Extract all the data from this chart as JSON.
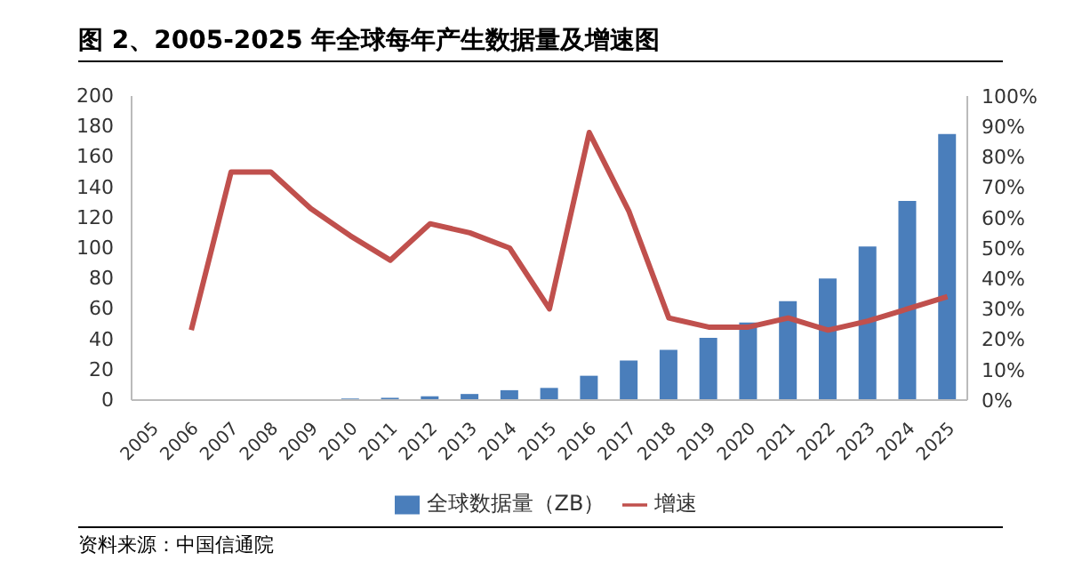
{
  "chart_data": {
    "type": "bar",
    "title": "图 2、2005-2025 年全球每年产生数据量及增速图",
    "categories": [
      "2005",
      "2006",
      "2007",
      "2008",
      "2009",
      "2010",
      "2011",
      "2012",
      "2013",
      "2014",
      "2015",
      "2016",
      "2017",
      "2018",
      "2019",
      "2020",
      "2021",
      "2022",
      "2023",
      "2024",
      "2025"
    ],
    "series": [
      {
        "name": "全球数据量（ZB）",
        "color": "#4a7ebb",
        "values": [
          0,
          0,
          0,
          0,
          0,
          1,
          1.5,
          2.5,
          4,
          6.5,
          8,
          16,
          26,
          33,
          41,
          51,
          65,
          80,
          101,
          131,
          175
        ]
      },
      {
        "name": "增速",
        "type": "line",
        "axis": "y2",
        "color": "#c0504d",
        "values": [
          null,
          23,
          75,
          75,
          63,
          54,
          46,
          58,
          55,
          50,
          30,
          88,
          62,
          27,
          24,
          24,
          27,
          23,
          26,
          30,
          34
        ]
      }
    ],
    "ylim": [
      0,
      200
    ],
    "yticks": [
      0,
      20,
      40,
      60,
      80,
      100,
      120,
      140,
      160,
      180,
      200
    ],
    "y2lim": [
      0,
      100
    ],
    "y2ticks": [
      {
        "value": 0,
        "label": "0%"
      },
      {
        "value": 10,
        "label": "10%"
      },
      {
        "value": 20,
        "label": "20%"
      },
      {
        "value": 30,
        "label": "30%"
      },
      {
        "value": 40,
        "label": "40%"
      },
      {
        "value": 50,
        "label": "50%"
      },
      {
        "value": 60,
        "label": "60%"
      },
      {
        "value": 70,
        "label": "70%"
      },
      {
        "value": 80,
        "label": "80%"
      },
      {
        "value": 90,
        "label": "90%"
      },
      {
        "value": 100,
        "label": "100%"
      }
    ],
    "legend": "bottom",
    "grid": false,
    "marker": "none",
    "annotations": [
      "资料来源：中国信通院"
    ]
  }
}
